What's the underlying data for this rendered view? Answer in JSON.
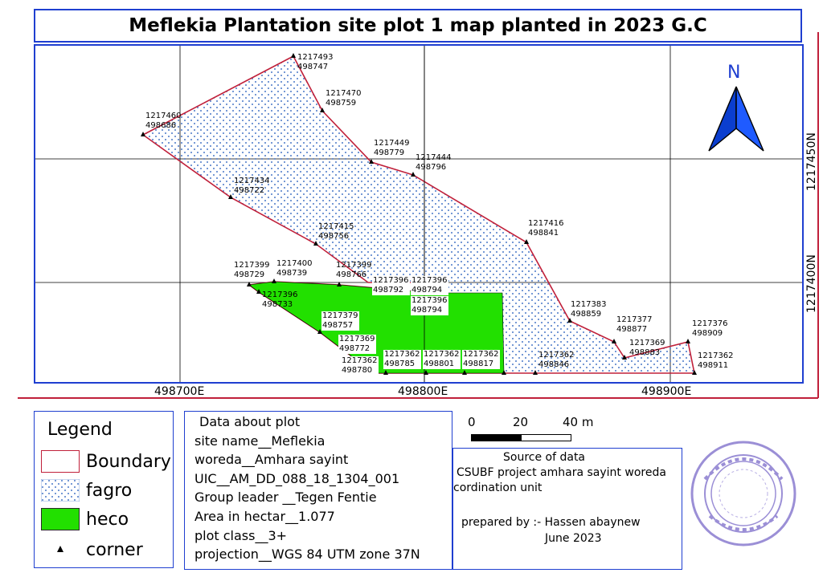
{
  "title": "Meflekia Plantation site plot 1 map planted in 2023 G.C",
  "map": {
    "grid_easting": [
      "498700E",
      "498800E",
      "498900E"
    ],
    "grid_northing": [
      "1217450N",
      "1217400N"
    ],
    "north_label": "N",
    "colors": {
      "boundary": "#c0203a",
      "fagro_dots": "#4a78c8",
      "heco": "#22e000",
      "frame": "#1f3fd0"
    },
    "corners": [
      {
        "n": "1217493",
        "e": "498747"
      },
      {
        "n": "1217470",
        "e": "498759"
      },
      {
        "n": "1217460",
        "e": "498686"
      },
      {
        "n": "1217449",
        "e": "498779"
      },
      {
        "n": "1217444",
        "e": "498796"
      },
      {
        "n": "1217434",
        "e": "498722"
      },
      {
        "n": "1217416",
        "e": "498841"
      },
      {
        "n": "1217415",
        "e": "498756"
      },
      {
        "n": "1217399",
        "e": "498729"
      },
      {
        "n": "1217400",
        "e": "498739"
      },
      {
        "n": "1217399",
        "e": "498766"
      },
      {
        "n": "1217396",
        "e": "498792"
      },
      {
        "n": "1217396",
        "e": "498794"
      },
      {
        "n": "1217396",
        "e": "498733"
      },
      {
        "n": "1217396",
        "e": "498794"
      },
      {
        "n": "1217383",
        "e": "498859"
      },
      {
        "n": "1217379",
        "e": "498757"
      },
      {
        "n": "1217377",
        "e": "498877"
      },
      {
        "n": "1217376",
        "e": "498909"
      },
      {
        "n": "1217369",
        "e": "498772"
      },
      {
        "n": "1217369",
        "e": "498883"
      },
      {
        "n": "1217362",
        "e": "498780"
      },
      {
        "n": "1217362",
        "e": "498785"
      },
      {
        "n": "1217362",
        "e": "498801"
      },
      {
        "n": "1217362",
        "e": "498817"
      },
      {
        "n": "1217362",
        "e": "498846"
      },
      {
        "n": "1217362",
        "e": "498911"
      }
    ]
  },
  "legend": {
    "title": "Legend",
    "items": [
      {
        "label": "Boundary"
      },
      {
        "label": "fagro"
      },
      {
        "label": "heco"
      },
      {
        "label": "corner"
      }
    ]
  },
  "plot_info": {
    "heading": "Data about plot",
    "site_name": "site name__Meflekia",
    "woreda": "woreda__Amhara sayint",
    "uic": "UIC__AM_DD_088_18_1304_001",
    "group_leader": "Group leader __Tegen Fentie",
    "area": "Area in hectar__1.077",
    "plot_class": "plot class__3+",
    "projection": "projection__WGS 84 UTM zone 37N"
  },
  "scale_bar": {
    "labels": [
      "0",
      "20",
      "40 m"
    ]
  },
  "source": {
    "heading": "Source of data",
    "line1": "CSUBF project amhara sayint woreda",
    "line2": "cordination unit",
    "prepared_by": "prepared by :- Hassen abaynew",
    "date": "June 2023"
  }
}
